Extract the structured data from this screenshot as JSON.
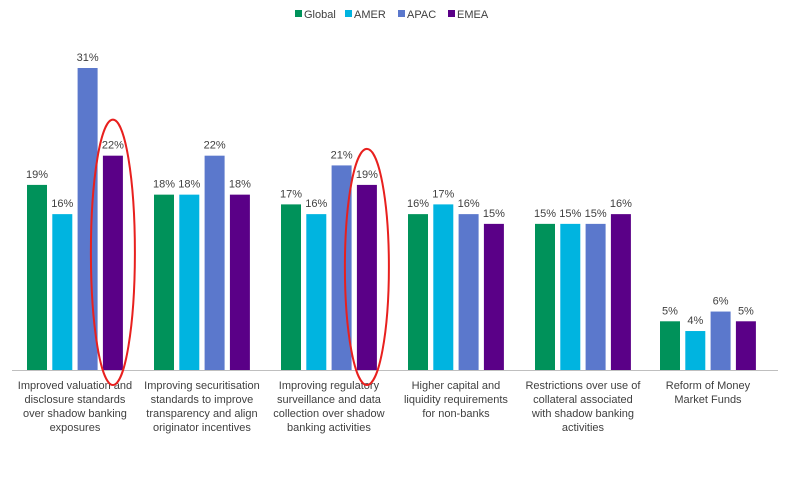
{
  "chart_data": {
    "type": "bar",
    "categories": [
      [
        "Improved valuation and",
        "disclosure standards",
        "over shadow banking",
        "exposures"
      ],
      [
        "Improving securitisation",
        "standards to improve",
        "transparency and align",
        "originator incentives"
      ],
      [
        "Improving regulatory",
        "surveillance and data",
        "collection over shadow",
        "banking activities"
      ],
      [
        "Higher capital and",
        "liquidity requirements",
        "for non-banks"
      ],
      [
        "Restrictions over use of",
        "collateral associated",
        "with shadow banking",
        "activities"
      ],
      [
        "Reform of Money",
        "Market Funds"
      ]
    ],
    "series": [
      {
        "name": "Global",
        "color": "#00925a",
        "values": [
          19,
          18,
          17,
          16,
          15,
          5
        ],
        "labels": [
          "19%",
          "18%",
          "17%",
          "16%",
          "15%",
          "5%"
        ]
      },
      {
        "name": "AMER",
        "color": "#00b4e0",
        "values": [
          16,
          18,
          16,
          17,
          15,
          4
        ],
        "labels": [
          "16%",
          "18%",
          "16%",
          "17%",
          "15%",
          "4%"
        ]
      },
      {
        "name": "APAC",
        "color": "#5b78cc",
        "values": [
          31,
          22,
          21,
          16,
          15,
          6
        ],
        "labels": [
          "31%",
          "22%",
          "21%",
          "16%",
          "15%",
          "6%"
        ]
      },
      {
        "name": "EMEA",
        "color": "#5a0087",
        "values": [
          22,
          18,
          19,
          15,
          16,
          5
        ],
        "labels": [
          "22%",
          "18%",
          "19%",
          "15%",
          "16%",
          "5%"
        ]
      }
    ],
    "ylim": [
      0,
      31
    ],
    "grid": false,
    "legend_position": "top-center",
    "annotations": [
      {
        "type": "ellipse",
        "color": "#e8201e",
        "category_index": 0,
        "series": "EMEA"
      },
      {
        "type": "ellipse",
        "color": "#e8201e",
        "category_index": 2,
        "series": "EMEA"
      }
    ]
  }
}
